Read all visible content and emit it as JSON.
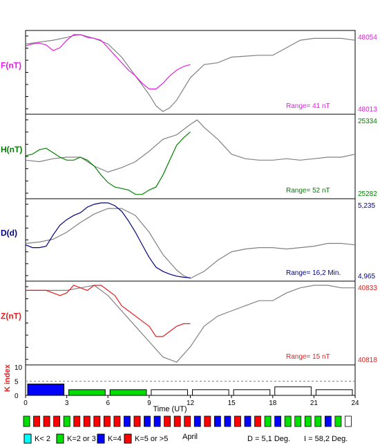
{
  "chart_data": [
    {
      "type": "line",
      "panel": "F",
      "ylabel": "F(nT)",
      "label_color": "#e020e0",
      "max_label": "48054",
      "min_label": "48013",
      "range_label": "Range= 41 nT",
      "ylim": [
        48013,
        48054
      ],
      "series": [
        {
          "color": "#e020e0",
          "x": [
            0,
            0.5,
            1,
            1.5,
            2,
            2.5,
            3,
            3.5,
            4,
            4.5,
            5,
            5.5,
            6,
            6.5,
            7,
            7.5,
            8,
            8.5,
            9,
            9.5,
            10,
            10.5,
            11,
            11.5,
            12
          ],
          "y": [
            48048,
            48049,
            48049.5,
            48048.5,
            48045.5,
            48047,
            48051,
            48054,
            48054,
            48052.5,
            48052,
            48051,
            48047,
            48043,
            48039,
            48035,
            48032,
            48028,
            48025,
            48025,
            48028,
            48032,
            48035,
            48037,
            48038
          ]
        },
        {
          "color": "#808080",
          "x": [
            0,
            1,
            2,
            3,
            3.5,
            4,
            5,
            6,
            7,
            8,
            9,
            9.5,
            10,
            10.5,
            11,
            12,
            13,
            14,
            15,
            16,
            17,
            18,
            19,
            20,
            21,
            22,
            23,
            24
          ],
          "y": [
            48049,
            48050,
            48051,
            48052.5,
            48053.5,
            48054,
            48052,
            48049,
            48042,
            48032,
            48022,
            48016,
            48013,
            48015,
            48019,
            48031,
            48038,
            48039,
            48042,
            48042.5,
            48043,
            48043,
            48047,
            48051,
            48052,
            48052,
            48052,
            48051
          ]
        }
      ]
    },
    {
      "type": "line",
      "panel": "H",
      "ylabel": "H(nT)",
      "label_color": "#008000",
      "max_label": "25334",
      "min_label": "25282",
      "range_label": "Range= 52 nT",
      "ylim": [
        25282,
        25334
      ],
      "series": [
        {
          "color": "#008000",
          "x": [
            0,
            0.5,
            1,
            1.5,
            2,
            2.5,
            3,
            3.5,
            4,
            4.5,
            5,
            5.5,
            6,
            6.5,
            7,
            7.5,
            8,
            8.5,
            9,
            9.5,
            10,
            10.5,
            11,
            11.5,
            12
          ],
          "y": [
            25309,
            25310,
            25313,
            25314,
            25311,
            25308,
            25306,
            25306,
            25308,
            25306,
            25302,
            25296,
            25291,
            25288,
            25287,
            25286,
            25283,
            25283,
            25286,
            25288,
            25296,
            25306,
            25316,
            25321,
            25325
          ]
        },
        {
          "color": "#808080",
          "x": [
            0,
            1,
            2,
            3,
            4,
            5,
            6,
            7,
            8,
            9,
            10,
            11,
            12,
            12.5,
            13,
            14,
            15,
            16,
            17,
            18,
            19,
            20,
            21,
            22,
            23,
            24
          ],
          "y": [
            25306,
            25305,
            25307,
            25308,
            25308,
            25302,
            25298,
            25301,
            25305,
            25312,
            25320,
            25323,
            25330,
            25333,
            25328,
            25320,
            25310,
            25307,
            25306,
            25306,
            25307,
            25306,
            25307,
            25308,
            25308,
            25310
          ]
        }
      ]
    },
    {
      "type": "line",
      "panel": "D",
      "ylabel": "D(d)",
      "label_color": "#000080",
      "max_label": "5,235",
      "min_label": "4,965",
      "range_label": "Range= 16,2 Min.",
      "ylim": [
        4.965,
        5.235
      ],
      "series": [
        {
          "color": "#000080",
          "x": [
            0,
            0.5,
            1,
            1.5,
            2,
            2.5,
            3,
            3.5,
            4,
            4.5,
            5,
            5.5,
            6,
            6.5,
            7,
            7.5,
            8,
            8.5,
            9,
            9.5,
            10,
            10.5,
            11,
            11.5,
            12
          ],
          "y": [
            5.085,
            5.075,
            5.075,
            5.08,
            5.12,
            5.155,
            5.175,
            5.19,
            5.2,
            5.22,
            5.23,
            5.235,
            5.235,
            5.225,
            5.205,
            5.17,
            5.13,
            5.085,
            5.04,
            5.005,
            4.99,
            4.98,
            4.973,
            4.969,
            4.967
          ]
        },
        {
          "color": "#808080",
          "x": [
            0,
            1,
            2,
            3,
            4,
            5,
            6,
            7,
            8,
            9,
            10,
            11,
            11.5,
            12,
            13,
            14,
            15,
            16,
            17,
            18,
            19,
            20,
            21,
            22,
            23,
            24
          ],
          "y": [
            5.09,
            5.095,
            5.105,
            5.13,
            5.165,
            5.195,
            5.215,
            5.215,
            5.19,
            5.13,
            5.05,
            4.995,
            4.975,
            4.965,
            4.99,
            5.03,
            5.06,
            5.07,
            5.075,
            5.075,
            5.07,
            5.075,
            5.08,
            5.09,
            5.09,
            5.085
          ]
        }
      ]
    },
    {
      "type": "line",
      "panel": "Z",
      "ylabel": "Z(nT)",
      "label_color": "#e02020",
      "max_label": "40833",
      "min_label": "40818",
      "range_label": "Range= 15 nT",
      "ylim": [
        40818,
        40833
      ],
      "series": [
        {
          "color": "#e02020",
          "x": [
            0,
            0.5,
            1,
            1.5,
            2,
            2.5,
            3,
            3.5,
            4,
            4.5,
            5,
            5.5,
            6,
            6.5,
            7,
            7.5,
            8,
            8.5,
            9,
            9.5,
            10,
            10.5,
            11,
            11.5,
            12
          ],
          "y": [
            40832,
            40832,
            40832,
            40832,
            40831.5,
            40831,
            40831.5,
            40833,
            40832.5,
            40832,
            40833,
            40833,
            40832,
            40831,
            40829,
            40828,
            40827,
            40826,
            40825,
            40823,
            40823,
            40824,
            40825,
            40825.5,
            40825.5
          ]
        },
        {
          "color": "#808080",
          "x": [
            0,
            1,
            2,
            3,
            4,
            5,
            6,
            7,
            8,
            9,
            10,
            11,
            12,
            13,
            14,
            15,
            16,
            17,
            18,
            19,
            20,
            21,
            22,
            23,
            24
          ],
          "y": [
            40832,
            40832,
            40832,
            40832,
            40832.5,
            40833,
            40831,
            40828,
            40825,
            40822,
            40819,
            40818,
            40821,
            40825,
            40827,
            40828,
            40829,
            40830,
            40830,
            40831.5,
            40832.5,
            40833,
            40833,
            40832.5,
            40832.5
          ]
        }
      ]
    },
    {
      "type": "bar",
      "panel": "K",
      "ylabel": "K index",
      "label_color": "#e02020",
      "y_tick_labels": [
        "10",
        "5",
        "0"
      ],
      "ylim": [
        0,
        10
      ],
      "xlabel": "Time (UT)",
      "x_tick_labels": [
        "0",
        "3",
        "6",
        "9",
        "12",
        "15",
        "18",
        "21",
        "24"
      ],
      "xlim": [
        0,
        24
      ],
      "bars": [
        {
          "start": 0,
          "end": 3,
          "value": 4,
          "color": "#0000ff"
        },
        {
          "start": 3,
          "end": 6,
          "value": 2,
          "color": "#00e000"
        },
        {
          "start": 6,
          "end": 9,
          "value": 2,
          "color": "#00e000"
        },
        {
          "start": 9,
          "end": 12,
          "value": 2,
          "color": "#ffffff"
        },
        {
          "start": 12,
          "end": 15,
          "value": 2,
          "color": "#ffffff"
        },
        {
          "start": 15,
          "end": 18,
          "value": 2,
          "color": "#ffffff"
        },
        {
          "start": 18,
          "end": 21,
          "value": 3,
          "color": "#ffffff"
        },
        {
          "start": 21,
          "end": 24,
          "value": 2,
          "color": "#ffffff"
        }
      ]
    }
  ],
  "daily_k": {
    "month": "April",
    "colors": [
      "#00e000",
      "#ff0000",
      "#ff0000",
      "#ff0000",
      "#00e000",
      "#ff0000",
      "#ff0000",
      "#ff0000",
      "#ff0000",
      "#ff0000",
      "#0000ff",
      "#ff0000",
      "#0000ff",
      "#0000ff",
      "#ff0000",
      "#ff0000",
      "#ff0000",
      "#0000ff",
      "#ff0000",
      "#0000ff",
      "#0000ff",
      "#ff0000",
      "#0000ff",
      "#ff0000",
      "#00e000",
      "#0000ff",
      "#00e000",
      "#00e000",
      "#00e000",
      "#00e000",
      "#0000ff",
      "#00e000",
      "#ffffff"
    ]
  },
  "legend": [
    {
      "label": "K< 2",
      "color": "#00ffff"
    },
    {
      "label": "K=2 or 3",
      "color": "#00e000"
    },
    {
      "label": "K=4",
      "color": "#0000ff"
    },
    {
      "label": "K=5 or >5",
      "color": "#ff0000"
    }
  ],
  "declination_text": "D = 5,1 Deg.",
  "inclination_text": "I = 58,2 Deg."
}
